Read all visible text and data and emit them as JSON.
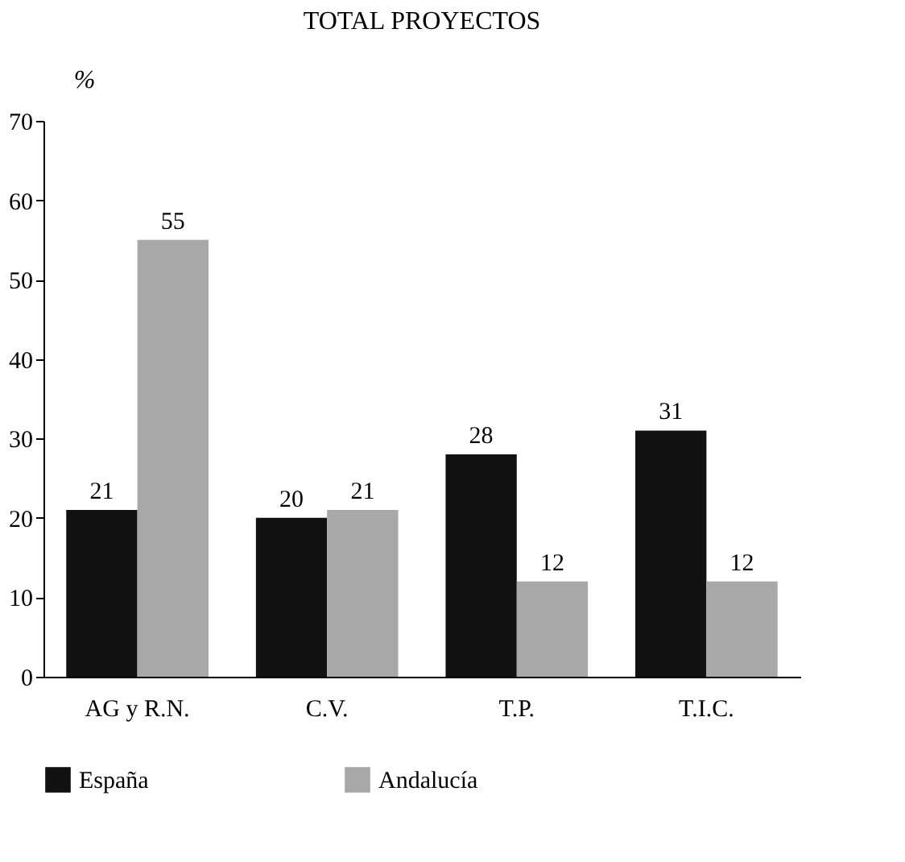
{
  "chart_data": {
    "type": "bar",
    "title": "TOTAL PROYECTOS",
    "ylabel": "%",
    "categories": [
      "AG y R.N.",
      "C.V.",
      "T.P.",
      "T.I.C."
    ],
    "series": [
      {
        "name": "España",
        "color": "#111111",
        "values": [
          21,
          20,
          28,
          31
        ]
      },
      {
        "name": "Andalucía",
        "color": "#a8a8a8",
        "values": [
          55,
          21,
          12,
          12
        ]
      }
    ],
    "ylim": [
      0,
      70
    ],
    "yticks": [
      0,
      10,
      20,
      30,
      40,
      50,
      60,
      70
    ],
    "grid": false,
    "legend": "bottom",
    "data_labels": true
  }
}
